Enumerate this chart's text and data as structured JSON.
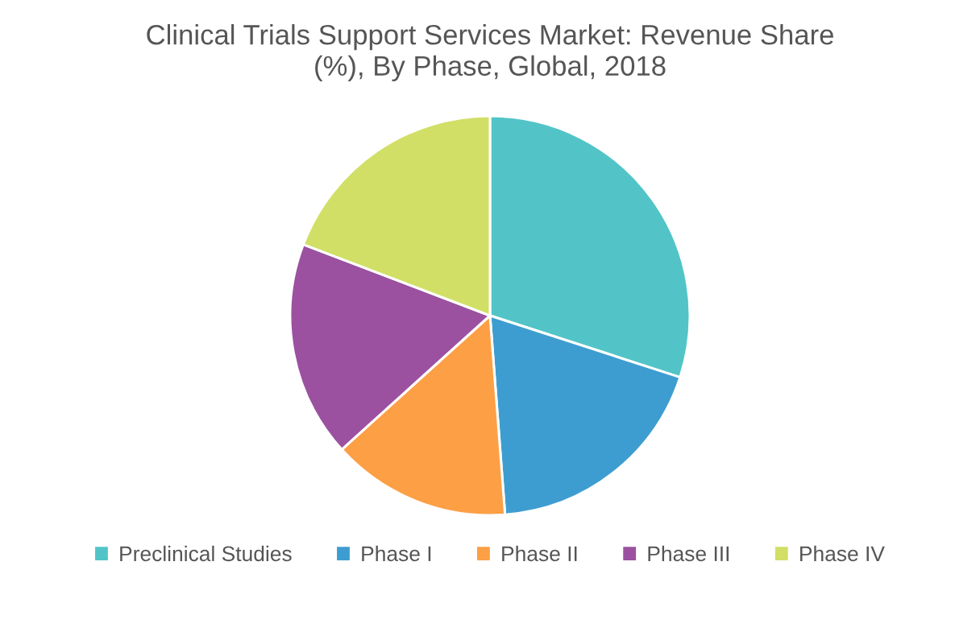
{
  "chart_data": {
    "type": "pie",
    "title": "Clinical Trials Support Services Market: Revenue Share (%), By Phase, Global, 2018",
    "categories": [
      "Preclinical Studies",
      "Phase I",
      "Phase II",
      "Phase III",
      "Phase IV"
    ],
    "values": [
      30,
      18.8,
      14.5,
      17.5,
      19.2
    ],
    "colors": [
      "#52c4c7",
      "#3e9dd0",
      "#fd9f45",
      "#9b51a0",
      "#d1df66"
    ],
    "legend": "bottom"
  }
}
